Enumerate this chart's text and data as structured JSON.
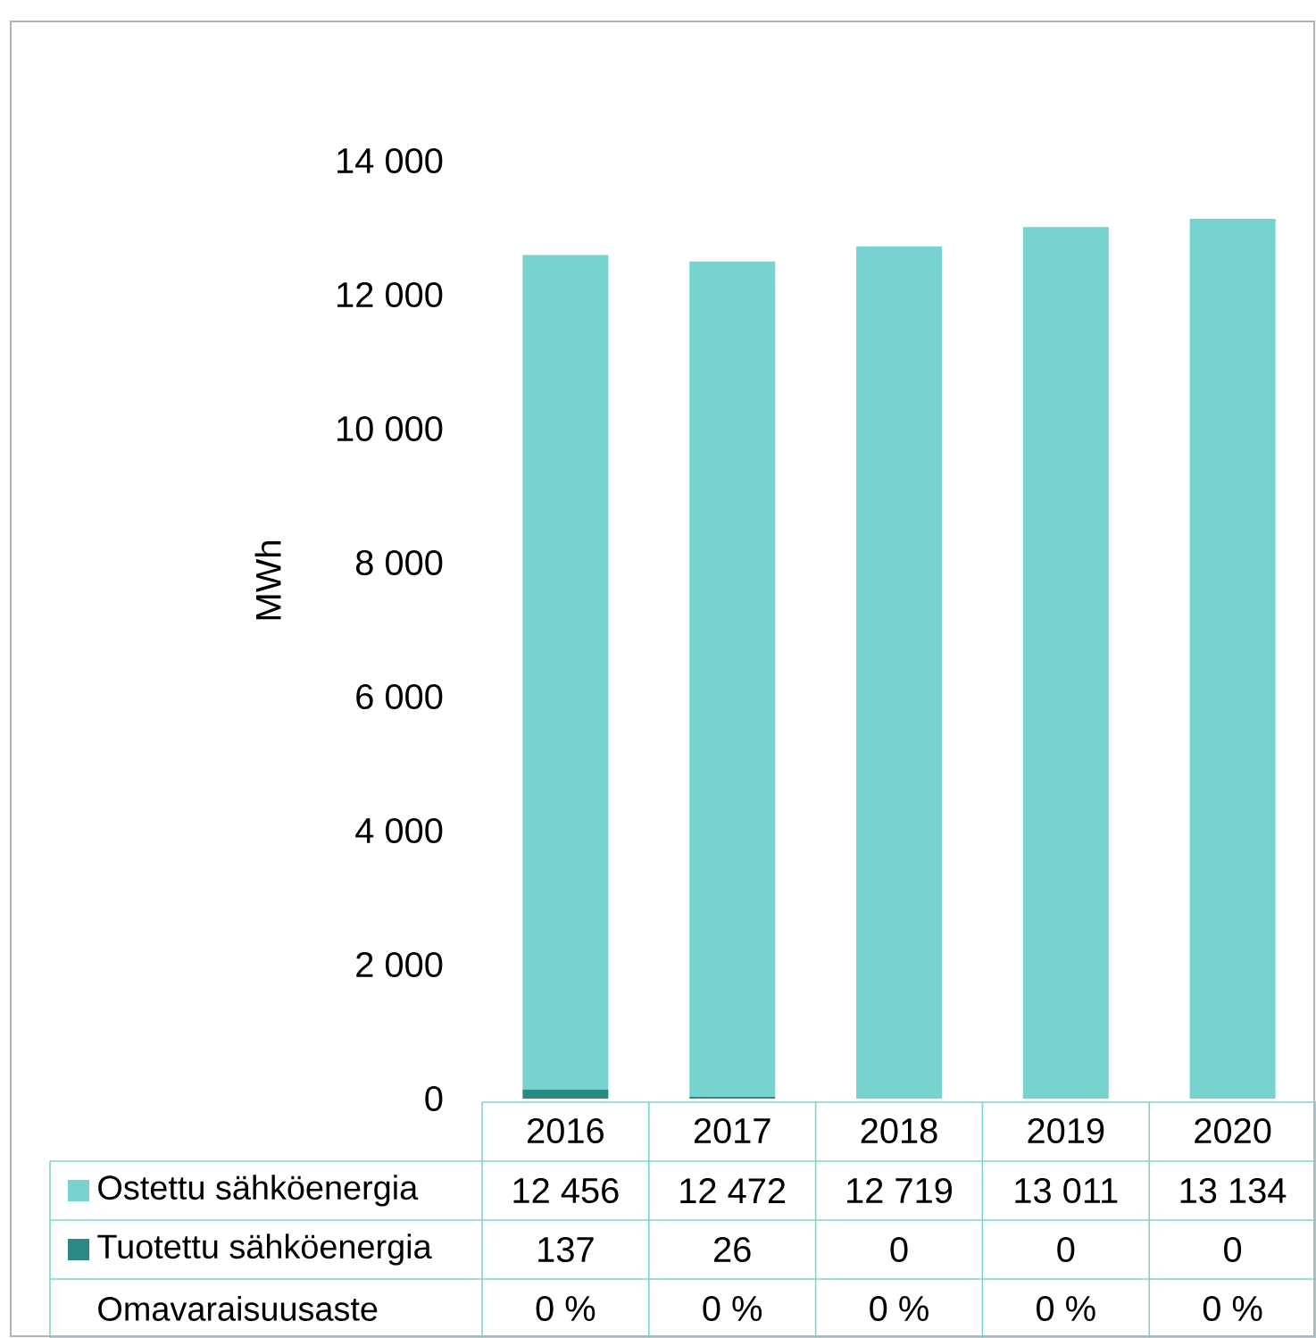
{
  "chart_data": {
    "type": "bar",
    "stacked": true,
    "ylabel": "MWh",
    "legend": "bottom",
    "categories": [
      "2016",
      "2017",
      "2018",
      "2019",
      "2020"
    ],
    "series": [
      {
        "name": "Tuotettu sähköenergia",
        "color": "#2a8a85",
        "values": [
          137,
          26,
          0,
          0,
          0
        ],
        "value_labels": [
          "137",
          "26",
          "0",
          "0",
          "0"
        ]
      },
      {
        "name": "Ostettu sähköenergia",
        "color": "#77d3cf",
        "values": [
          12456,
          12472,
          12719,
          13011,
          13134
        ],
        "value_labels": [
          "12 456",
          "12 472",
          "12 719",
          "13 011",
          "13 134"
        ]
      },
      {
        "name": "Omavaraisuusaste",
        "values": [
          0,
          0,
          0,
          0,
          0
        ],
        "value_labels": [
          "0 %",
          "0 %",
          "0 %",
          "0 %",
          "0 %"
        ]
      }
    ],
    "ylim": [
      0,
      14000
    ],
    "yticks": [
      0,
      {
        "value": 2000,
        "label": "2 000"
      },
      {
        "value": 4000,
        "label": "4 000"
      },
      {
        "value": 6000,
        "label": "6 000"
      },
      {
        "value": 8000,
        "label": "8 000"
      },
      {
        "value": 10000,
        "label": "10 000"
      },
      {
        "value": 12000,
        "label": "12 000"
      },
      {
        "value": 14000,
        "label": "14 000"
      }
    ]
  }
}
